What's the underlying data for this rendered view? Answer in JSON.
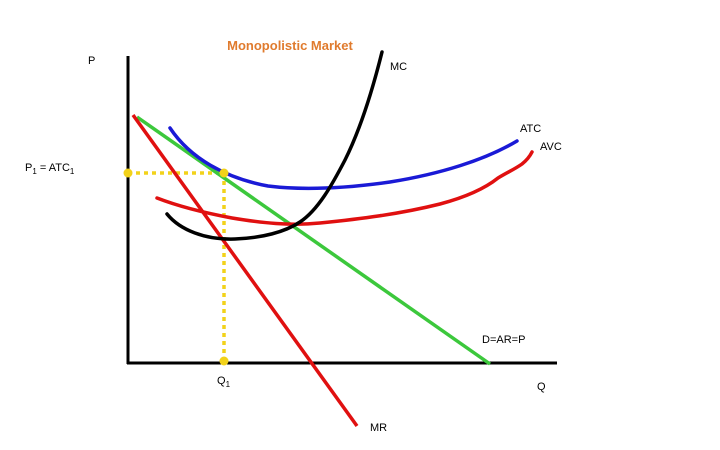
{
  "diagram": {
    "title": "Monopolistic Market",
    "y_axis_label": "P",
    "x_axis_label": "Q",
    "price_label": "P",
    "price_label_sub": "1",
    "price_label_mid": " = ATC",
    "price_label_sub2": "1",
    "quantity_label": "Q",
    "quantity_label_sub": "1",
    "curves": {
      "mc": "MC",
      "atc": "ATC",
      "avc": "AVC",
      "demand": "D=AR=P",
      "mr": "MR"
    },
    "colors": {
      "title": "#e07b2e",
      "axis": "#000000",
      "mc": "#000000",
      "atc": "#1a1ad6",
      "avc": "#e01010",
      "demand": "#3cc83c",
      "mr": "#e01010",
      "guide": "#f2d21a"
    }
  }
}
